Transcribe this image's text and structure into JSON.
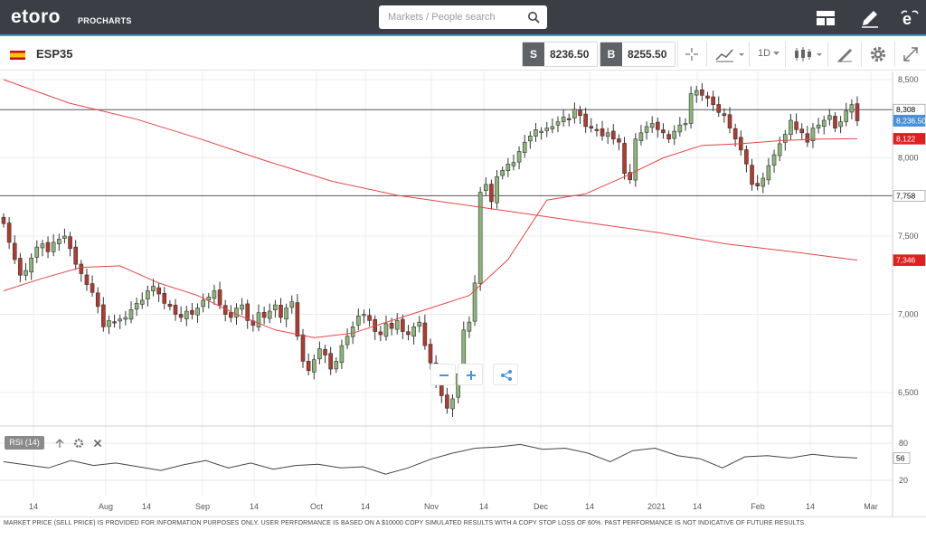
{
  "app": {
    "logo": "etoro",
    "logo_sub": "PROCHARTS"
  },
  "search": {
    "placeholder": "Markets / People search"
  },
  "header_icons": [
    "layout-icon",
    "pencil-icon",
    "etoro-user-icon"
  ],
  "instrument": {
    "symbol": "ESP35",
    "flag": "spain-flag-icon"
  },
  "quote": {
    "sell_letter": "S",
    "sell": "8236.50",
    "buy_letter": "B",
    "buy": "8255.50"
  },
  "toolbar": {
    "timeframe": "1D"
  },
  "price_axis": {
    "ticks": [
      "8,500",
      "8,000",
      "7,500",
      "7,000",
      "6,500"
    ],
    "badges": [
      {
        "label": "8,308",
        "color": "#ffffff",
        "text": "#000000"
      },
      {
        "label": "8,236.50",
        "color": "#4a90d9",
        "text": "#ffffff"
      },
      {
        "label": "8,122",
        "color": "#e02020",
        "text": "#ffffff"
      },
      {
        "label": "7,758",
        "color": "#ffffff",
        "text": "#000000"
      },
      {
        "label": "7,346",
        "color": "#e02020",
        "text": "#ffffff"
      }
    ]
  },
  "time_axis": [
    "14",
    "Aug",
    "14",
    "Sep",
    "14",
    "Oct",
    "14",
    "Nov",
    "14",
    "Dec",
    "14",
    "2021",
    "14",
    "Feb",
    "14",
    "Mar"
  ],
  "rsi": {
    "label": "RSI (14)",
    "ticks": [
      "80",
      "20"
    ],
    "value": "56"
  },
  "colors": {
    "up": "#8bb77a",
    "down": "#b23a2e",
    "ma": "#e84545",
    "accent": "#4a90d9"
  },
  "footer": {
    "disclaimer": "MARKET PRICE (SELL PRICE) IS PROVIDED FOR INFORMATION PURPOSES ONLY. USER PERFORMANCE IS BASED ON A $10000 COPY SIMULATED RESULTS WITH A COPY STOP LOSS OF 60%. PAST PERFORMANCE IS NOT INDICATIVE OF FUTURE RESULTS."
  },
  "chart_data": {
    "type": "candlestick",
    "symbol": "ESP35",
    "timeframe": "1D",
    "ylim": [
      6300,
      8550
    ],
    "horizontal_lines": [
      8308,
      7758
    ],
    "last_price": 8236.5,
    "close": [
      7580,
      7460,
      7350,
      7250,
      7280,
      7360,
      7430,
      7450,
      7400,
      7460,
      7480,
      7500,
      7420,
      7320,
      7260,
      7190,
      7140,
      7050,
      6920,
      6960,
      6950,
      6970,
      6980,
      7030,
      7070,
      7090,
      7150,
      7180,
      7130,
      7070,
      7050,
      7000,
      6980,
      7020,
      7000,
      7040,
      7090,
      7110,
      7150,
      7060,
      7000,
      6980,
      7040,
      7060,
      6960,
      6930,
      7010,
      6980,
      7020,
      7060,
      6980,
      7040,
      7080,
      6860,
      6700,
      6640,
      6710,
      6780,
      6740,
      6650,
      6700,
      6800,
      6860,
      6920,
      6990,
      7000,
      6960,
      6890,
      6870,
      6940,
      6910,
      6960,
      6890,
      6870,
      6920,
      6950,
      6800,
      6690,
      6560,
      6480,
      6400,
      6460,
      6620,
      6900,
      6950,
      7200,
      7780,
      7830,
      7720,
      7880,
      7920,
      7960,
      7970,
      8040,
      8100,
      8140,
      8180,
      8170,
      8190,
      8200,
      8230,
      8260,
      8250,
      8310,
      8270,
      8200,
      8190,
      8180,
      8140,
      8160,
      8120,
      8100,
      7900,
      7860,
      8120,
      8160,
      8200,
      8220,
      8180,
      8160,
      8120,
      8170,
      8210,
      8220,
      8410,
      8430,
      8400,
      8380,
      8340,
      8290,
      8270,
      8190,
      8120,
      8050,
      7960,
      7830,
      7820,
      7870,
      7950,
      8020,
      8090,
      8150,
      8240,
      8180,
      8160,
      8100,
      8190,
      8210,
      8240,
      8270,
      8190,
      8230,
      8300,
      8340,
      8237
    ],
    "ma_short": [
      7150,
      7230,
      7300,
      7310,
      7200,
      7120,
      7000,
      6900,
      6850,
      6880,
      6960,
      7040,
      7120,
      7350,
      7730,
      7770,
      7880,
      8000,
      8080,
      8090,
      8110,
      8120,
      8122
    ],
    "ma_long": [
      8500,
      8350,
      8250,
      8120,
      7980,
      7850,
      7760,
      7700,
      7640,
      7580,
      7520,
      7450,
      7400,
      7346
    ],
    "rsi": [
      50,
      45,
      40,
      52,
      44,
      48,
      42,
      36,
      45,
      52,
      40,
      48,
      38,
      44,
      46,
      40,
      42,
      30,
      40,
      54,
      64,
      72,
      74,
      78,
      70,
      72,
      64,
      50,
      68,
      72,
      60,
      55,
      40,
      58,
      60,
      56,
      62,
      58,
      56
    ],
    "rsi_ylim": [
      0,
      100
    ],
    "rsi_levels": [
      80,
      20
    ]
  }
}
